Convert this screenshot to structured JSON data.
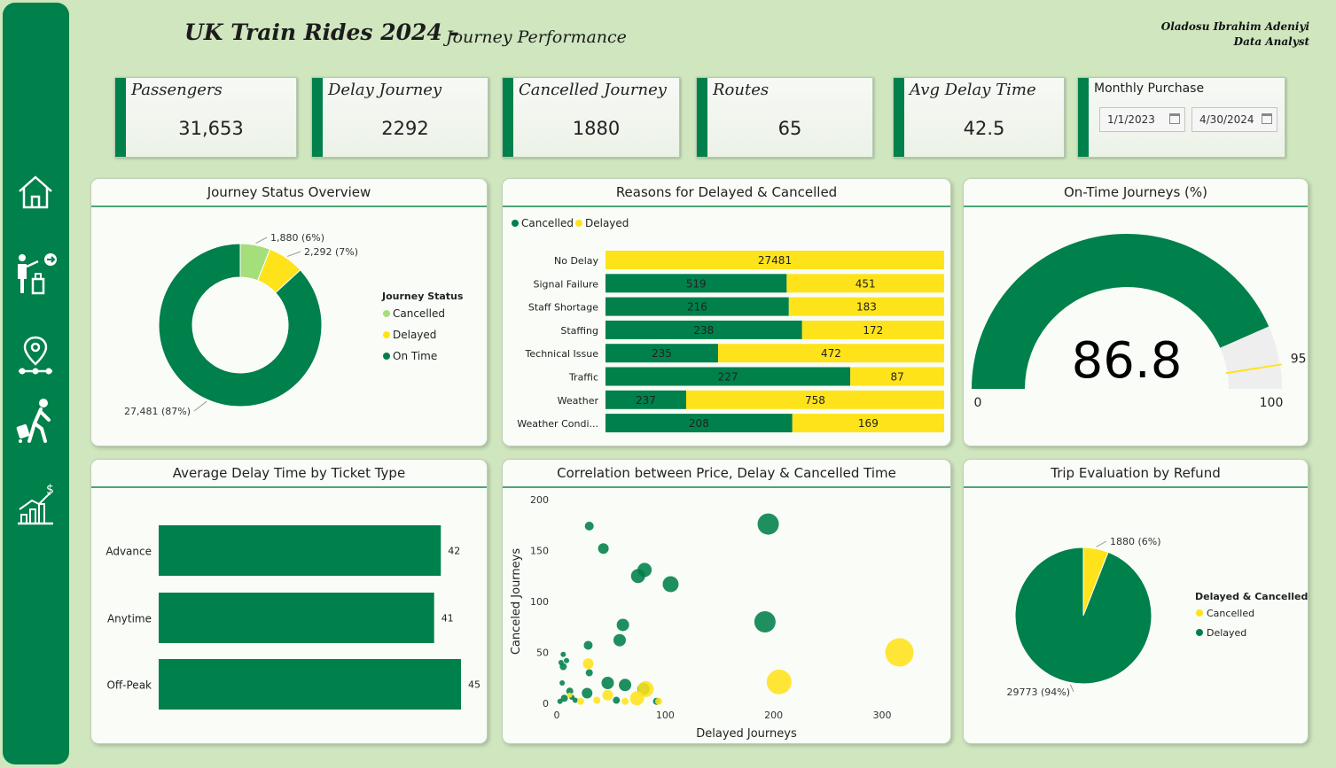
{
  "header": {
    "title": "UK Train Rides 2024 -",
    "subtitle": "Journey Performance",
    "author_name": "Oladosu Ibrahim Adeniyi",
    "author_role": "Data Analyst"
  },
  "sidebar": {
    "items": [
      {
        "icon": "home-icon"
      },
      {
        "icon": "passenger-icon"
      },
      {
        "icon": "route-pin-icon"
      },
      {
        "icon": "traveler-icon"
      },
      {
        "icon": "finance-chart-icon"
      }
    ]
  },
  "kpis": [
    {
      "label": "Passengers",
      "value": "31,653"
    },
    {
      "label": "Delay Journey",
      "value": "2292"
    },
    {
      "label": "Cancelled Journey",
      "value": "1880"
    },
    {
      "label": "Routes",
      "value": "65"
    },
    {
      "label": "Avg Delay Time",
      "value": "42.5"
    }
  ],
  "monthly_purchase": {
    "label": "Monthly Purchase",
    "start": "1/1/2023",
    "end": "4/30/2024"
  },
  "colors": {
    "green": "#00804a",
    "yellow": "#ffe31a",
    "light_green": "#a4df7c",
    "gauge_rest": "#eeeeee"
  },
  "panels": {
    "status_title": "Journey Status Overview",
    "reasons_title": "Reasons for Delayed & Cancelled",
    "ontime_title": "On-Time Journeys (%)",
    "ticket_title": "Average Delay Time by Ticket Type",
    "corr_title": "Correlation between Price, Delay & Cancelled Time",
    "refund_title": "Trip Evaluation by Refund"
  },
  "chart_data": [
    {
      "type": "pie",
      "variant": "donut",
      "title": "Journey Status Overview",
      "legend_title": "Journey Status",
      "legend_position": "right",
      "categories": [
        "Cancelled",
        "Delayed",
        "On Time"
      ],
      "values": [
        1880,
        2292,
        27481
      ],
      "data_labels": [
        "1,880 (6%)",
        "2,292 (7%)",
        "27,481 (87%)"
      ]
    },
    {
      "type": "bar",
      "orientation": "horizontal",
      "stacked": "percent",
      "title": "Reasons for Delayed & Cancelled",
      "legend_position": "top-left",
      "categories": [
        "No Delay",
        "Signal Failure",
        "Staff Shortage",
        "Staffing",
        "Technical Issue",
        "Traffic",
        "Weather",
        "Weather Condi..."
      ],
      "series": [
        {
          "name": "Cancelled",
          "values": [
            null,
            519,
            216,
            238,
            235,
            227,
            237,
            208
          ]
        },
        {
          "name": "Delayed",
          "values": [
            27481,
            451,
            183,
            172,
            472,
            87,
            758,
            169
          ]
        }
      ]
    },
    {
      "type": "gauge",
      "title": "On-Time Journeys (%)",
      "value": 86.8,
      "target": 95,
      "min": 0,
      "max": 100
    },
    {
      "type": "bar",
      "orientation": "horizontal",
      "title": "Average Delay Time by Ticket Type",
      "categories": [
        "Advance",
        "Anytime",
        "Off-Peak"
      ],
      "values": [
        42,
        41,
        45
      ],
      "xlim": [
        0,
        45
      ]
    },
    {
      "type": "scatter",
      "variant": "bubble",
      "title": "Correlation between Price, Delay & Cancelled Time",
      "xlabel": "Delayed Journeys",
      "ylabel": "Canceled Journeys",
      "xlim": [
        0,
        340
      ],
      "ylim": [
        0,
        200
      ],
      "x_ticks": [
        0,
        100,
        200,
        300
      ],
      "y_ticks": [
        0,
        50,
        100,
        150,
        200
      ],
      "grid": false,
      "series": [
        {
          "color": "green",
          "points": [
            {
              "x": 30,
              "y": 174,
              "size": 5
            },
            {
              "x": 43,
              "y": 152,
              "size": 6
            },
            {
              "x": 81,
              "y": 131,
              "size": 8
            },
            {
              "x": 75,
              "y": 125,
              "size": 8
            },
            {
              "x": 105,
              "y": 117,
              "size": 9
            },
            {
              "x": 195,
              "y": 176,
              "size": 12
            },
            {
              "x": 192,
              "y": 80,
              "size": 12
            },
            {
              "x": 61,
              "y": 77,
              "size": 7
            },
            {
              "x": 58,
              "y": 62,
              "size": 7
            },
            {
              "x": 29,
              "y": 57,
              "size": 5
            },
            {
              "x": 6,
              "y": 48,
              "size": 3
            },
            {
              "x": 4,
              "y": 40,
              "size": 3
            },
            {
              "x": 6,
              "y": 36,
              "size": 4
            },
            {
              "x": 9,
              "y": 42,
              "size": 3
            },
            {
              "x": 30,
              "y": 30,
              "size": 4
            },
            {
              "x": 47,
              "y": 20,
              "size": 7
            },
            {
              "x": 63,
              "y": 18,
              "size": 7
            },
            {
              "x": 80,
              "y": 14,
              "size": 7
            },
            {
              "x": 5,
              "y": 20,
              "size": 3
            },
            {
              "x": 12,
              "y": 12,
              "size": 4
            },
            {
              "x": 28,
              "y": 10,
              "size": 6
            },
            {
              "x": 7,
              "y": 5,
              "size": 4
            },
            {
              "x": 17,
              "y": 3,
              "size": 3
            },
            {
              "x": 3,
              "y": 2,
              "size": 3
            },
            {
              "x": 14,
              "y": 6,
              "size": 3
            },
            {
              "x": 55,
              "y": 3,
              "size": 4
            },
            {
              "x": 92,
              "y": 2,
              "size": 4
            }
          ]
        },
        {
          "color": "yellow",
          "points": [
            {
              "x": 316,
              "y": 50,
              "size": 16
            },
            {
              "x": 205,
              "y": 21,
              "size": 14
            },
            {
              "x": 29,
              "y": 39,
              "size": 6
            },
            {
              "x": 82,
              "y": 14,
              "size": 9
            },
            {
              "x": 74,
              "y": 5,
              "size": 8
            },
            {
              "x": 47,
              "y": 8,
              "size": 6
            },
            {
              "x": 37,
              "y": 3,
              "size": 4
            },
            {
              "x": 12,
              "y": 8,
              "size": 3
            },
            {
              "x": 22,
              "y": 2,
              "size": 4
            },
            {
              "x": 63,
              "y": 2,
              "size": 4
            },
            {
              "x": 94,
              "y": 2,
              "size": 4
            }
          ]
        }
      ]
    },
    {
      "type": "pie",
      "title": "Trip Evaluation by Refund",
      "legend_title": "Delayed & Cancelled",
      "legend_position": "right",
      "categories": [
        "Cancelled",
        "Delayed"
      ],
      "values": [
        1880,
        29773
      ],
      "data_labels": [
        "1880 (6%)",
        "29773 (94%)"
      ]
    }
  ]
}
